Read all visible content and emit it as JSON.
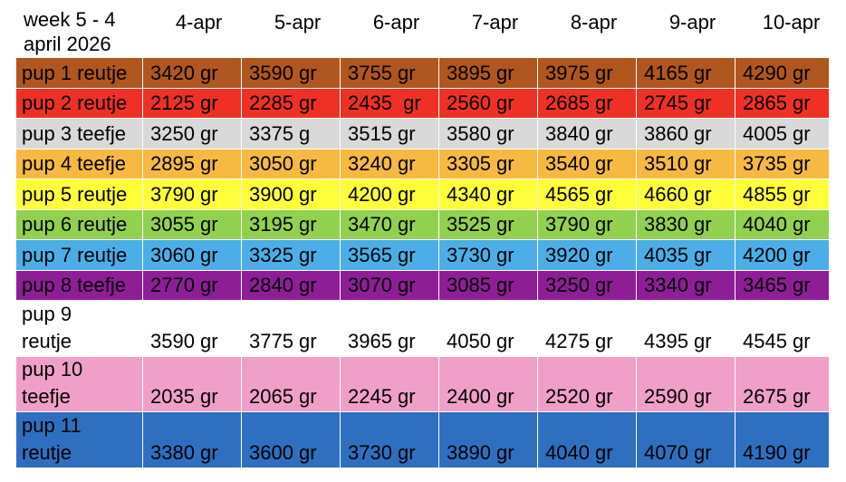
{
  "header": {
    "title": "week 5 -  4 april 2026",
    "dates": [
      "4-apr",
      "5-apr",
      "6-apr",
      "7-apr",
      "8-apr",
      "9-apr",
      "10-apr"
    ]
  },
  "table": {
    "rows": [
      {
        "label": "pup 1 reutje",
        "color": "#b0561f",
        "cells": [
          "3420 gr",
          "3590 gr",
          "3755 gr",
          "3895 gr",
          "3975 gr",
          "4165 gr",
          "4290 gr"
        ]
      },
      {
        "label": "pup 2 reutje",
        "color": "#ee3124",
        "cells": [
          "2125 gr",
          "2285 gr",
          "2435  gr",
          "2560 gr",
          "2685 gr",
          "2745 gr",
          "2865 gr"
        ]
      },
      {
        "label": "pup 3 teefje",
        "color": "#d9d9d9",
        "cells": [
          "3250 gr",
          "3375 g",
          "3515 gr",
          "3580 gr",
          "3840 gr",
          "3860 gr",
          "4005 gr"
        ]
      },
      {
        "label": "pup 4 teefje",
        "color": "#f6b942",
        "cells": [
          "2895 gr",
          "3050 gr",
          "3240 gr",
          "3305 gr",
          "3540 gr",
          "3510 gr",
          "3735 gr"
        ]
      },
      {
        "label": "pup 5 reutje",
        "color": "#ffff3a",
        "cells": [
          "3790 gr",
          "3900 gr",
          "4200 gr",
          "4340 gr",
          "4565 gr",
          "4660 gr",
          "4855 gr"
        ]
      },
      {
        "label": "pup 6 reutje",
        "color": "#92d050",
        "cells": [
          "3055 gr",
          "3195 gr",
          "3470 gr",
          "3525 gr",
          "3790 gr",
          "3830 gr",
          "4040 gr"
        ]
      },
      {
        "label": "pup 7 reutje",
        "color": "#4baee8",
        "cells": [
          "3060 gr",
          "3325 gr",
          "3565 gr",
          "3730 gr",
          "3920 gr",
          "4035 gr",
          "4200 gr"
        ]
      },
      {
        "label": "pup 8 teefje",
        "color": "#8e1e96",
        "cells": [
          "2770 gr",
          "2840 gr",
          "3070 gr",
          "3085 gr",
          "3250 gr",
          "3340 gr",
          "3465 gr"
        ]
      },
      {
        "label": "pup 9 reutje",
        "color": "#ffffff",
        "cells": [
          "3590 gr",
          "3775 gr",
          "3965 gr",
          "4050 gr",
          "4275 gr",
          "4395 gr",
          "4545 gr"
        ]
      },
      {
        "label": "pup 10 teefje",
        "color": "#f0a0c8",
        "cells": [
          "2035 gr",
          "2065 gr",
          "2245 gr",
          "2400 gr",
          "2520 gr",
          "2590 gr",
          "2675 gr"
        ]
      },
      {
        "label": "pup 11 reutje",
        "color": "#2f6fbf",
        "cells": [
          "3380 gr",
          "3600 gr",
          "3730 gr",
          "3890 gr",
          "4040 gr",
          "4070 gr",
          "4190 gr"
        ]
      }
    ]
  }
}
